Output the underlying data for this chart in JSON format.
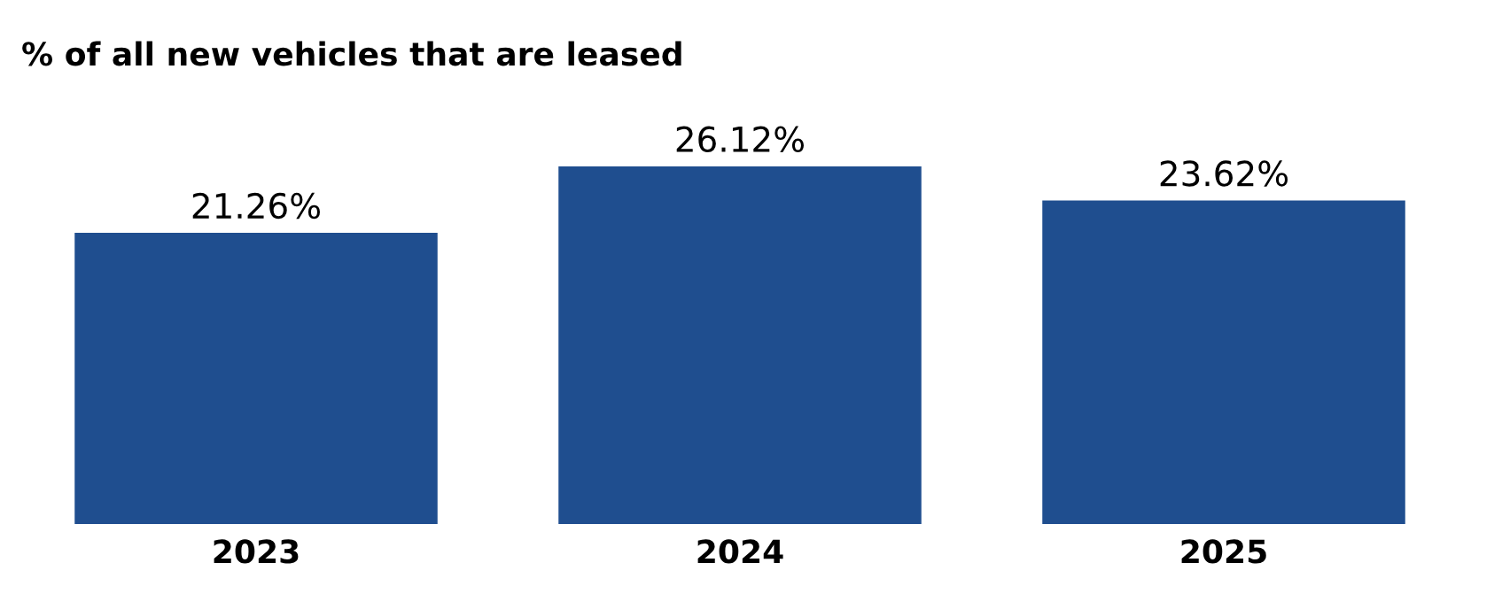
{
  "chart_data": {
    "type": "bar",
    "title": "% of all new vehicles that are leased",
    "categories": [
      "2023",
      "2024",
      "2025"
    ],
    "values": [
      21.26,
      26.12,
      23.62
    ],
    "value_labels": [
      "21.26%",
      "26.12%",
      "23.62%"
    ],
    "color": "#1f4e8f",
    "grid": false,
    "legend": false
  }
}
